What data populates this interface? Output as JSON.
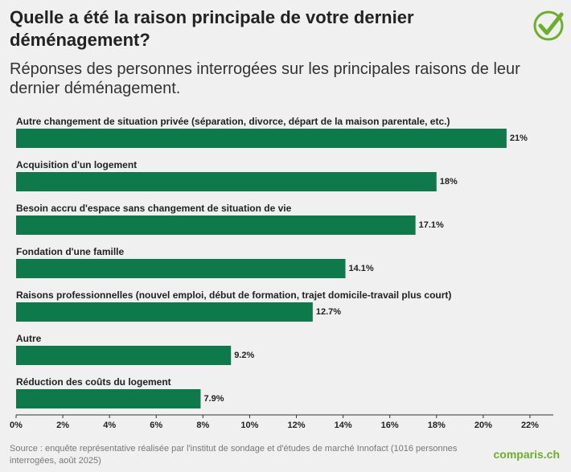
{
  "chart_data": {
    "type": "bar",
    "orientation": "horizontal",
    "title": "Quelle a été la raison principale de votre dernier déménagement?",
    "subtitle": "Réponses des personnes interrogées sur les principales raisons de leur dernier déménagement.",
    "categories": [
      "Autre changement de situation privée (séparation, divorce, départ de la maison parentale, etc.)",
      "Acquisition d'un logement",
      "Besoin accru d'espace sans changement de situation de vie",
      "Fondation d'une famille",
      "Raisons professionnelles (nouvel emploi, début de formation, trajet domicile-travail plus court)",
      "Autre",
      "Réduction des coûts du logement"
    ],
    "values": [
      21,
      18,
      17.1,
      14.1,
      12.7,
      9.2,
      7.9
    ],
    "value_labels": [
      "21%",
      "18%",
      "17.1%",
      "14.1%",
      "12.7%",
      "9.2%",
      "7.9%"
    ],
    "color": "#0e7a4b",
    "xlim": [
      0,
      23
    ],
    "xticks": [
      {
        "value": 0,
        "label": "0%"
      },
      {
        "value": 2,
        "label": "2%"
      },
      {
        "value": 4,
        "label": "4%"
      },
      {
        "value": 6,
        "label": "6%"
      },
      {
        "value": 8,
        "label": "8%"
      },
      {
        "value": 10,
        "label": "10%"
      },
      {
        "value": 12,
        "label": "12%"
      },
      {
        "value": 14,
        "label": "14%"
      },
      {
        "value": 16,
        "label": "16%"
      },
      {
        "value": 18,
        "label": "18%"
      },
      {
        "value": 20,
        "label": "20%"
      },
      {
        "value": 22,
        "label": "22%"
      }
    ],
    "grid": false,
    "source": "Source : enquête représentative réalisée par l'institut de sondage et d'études de marché Innofact (1016 personnes interrogées, août 2025)",
    "brand": "comparis.ch"
  }
}
